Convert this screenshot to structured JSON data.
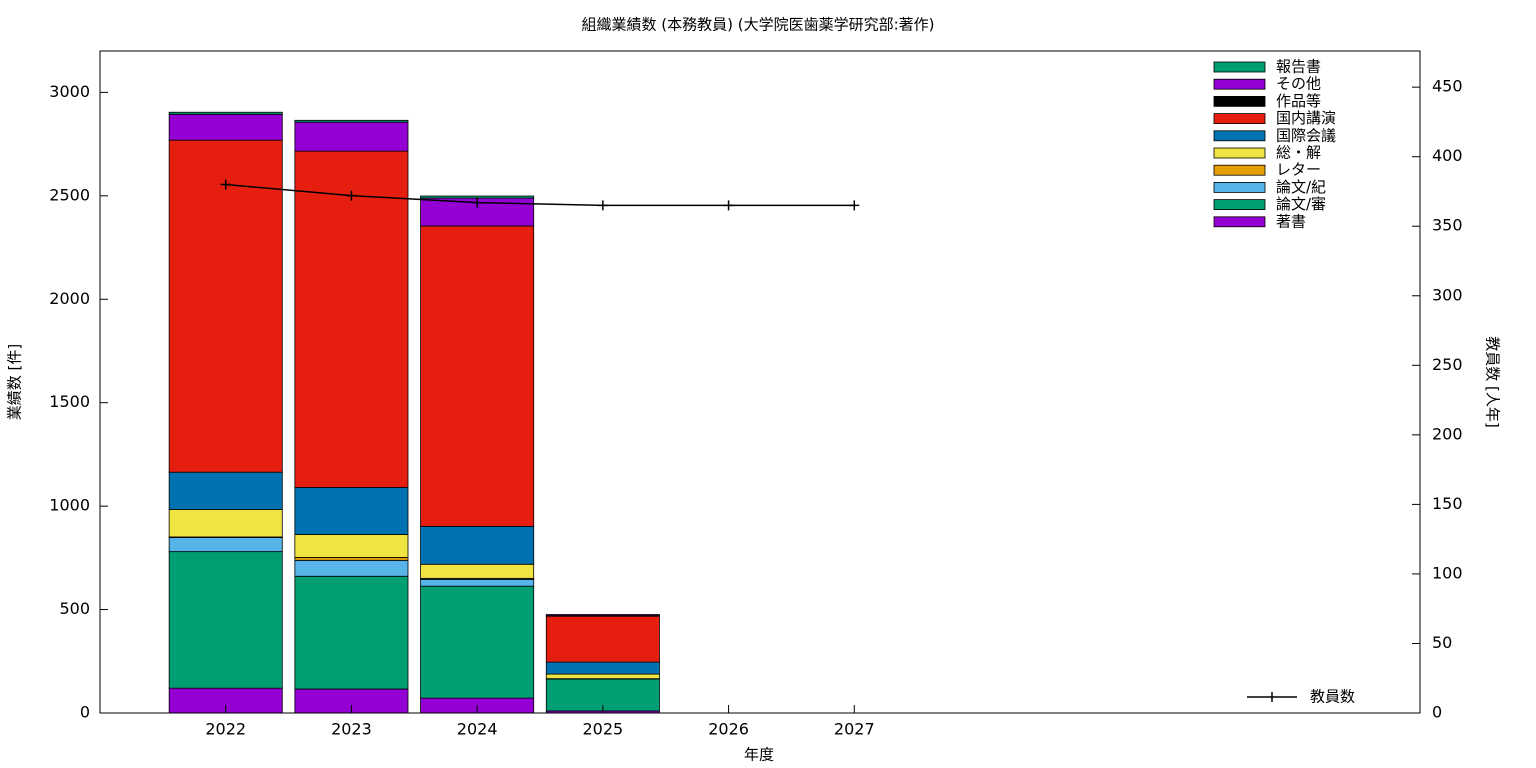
{
  "chart_data": {
    "type": "bar",
    "title": "組織業績数 (本務教員) (大学院医歯薬学研究部:著作)",
    "x_label": "年度",
    "y_label": "業績数 [件]",
    "y2_label": "教員数 [人年]",
    "x": [
      2022,
      2023,
      2024,
      2025,
      2026,
      2027
    ],
    "xlim": [
      2021,
      2031.5
    ],
    "xticks": [
      2022,
      2023,
      2024,
      2025,
      2026,
      2027
    ],
    "ylim": [
      0,
      3200
    ],
    "yticks": [
      0,
      500,
      1000,
      1500,
      2000,
      2500,
      3000
    ],
    "y2lim": [
      0,
      476
    ],
    "y2ticks": [
      0,
      50,
      100,
      150,
      200,
      250,
      300,
      350,
      400,
      450
    ],
    "legend": "top-right",
    "line_legend": "bottom-right",
    "series": [
      {
        "name": "著書",
        "color": "#9400d3",
        "values": [
          120,
          116,
          72,
          10,
          null,
          null
        ]
      },
      {
        "name": "論文/審",
        "color": "#009e73",
        "values": [
          660,
          545,
          541,
          154,
          null,
          null
        ]
      },
      {
        "name": "論文/紀",
        "color": "#56b4e9",
        "values": [
          68,
          77,
          33,
          0,
          null,
          null
        ]
      },
      {
        "name": "レター",
        "color": "#e69f00",
        "values": [
          3,
          14,
          5,
          2,
          null,
          null
        ]
      },
      {
        "name": "総・解",
        "color": "#f0e442",
        "values": [
          133,
          111,
          68,
          22,
          null,
          null
        ]
      },
      {
        "name": "国際会議",
        "color": "#0072b2",
        "values": [
          180,
          227,
          183,
          58,
          null,
          null
        ]
      },
      {
        "name": "国内講演",
        "color": "#e51e10",
        "values": [
          1605,
          1626,
          1452,
          222,
          null,
          null
        ]
      },
      {
        "name": "作品等",
        "color": "#000000",
        "values": [
          0,
          0,
          0,
          0,
          null,
          null
        ]
      },
      {
        "name": "その他",
        "color": "#9400d3",
        "values": [
          125,
          140,
          135,
          5,
          null,
          null
        ]
      },
      {
        "name": "報告書",
        "color": "#009e73",
        "values": [
          10,
          9,
          10,
          3,
          null,
          null
        ]
      },
      {
        "name": "教員数",
        "type": "line",
        "axis": "y2",
        "color": "#000000",
        "values": [
          380,
          372,
          367,
          365,
          365,
          365
        ]
      }
    ]
  }
}
